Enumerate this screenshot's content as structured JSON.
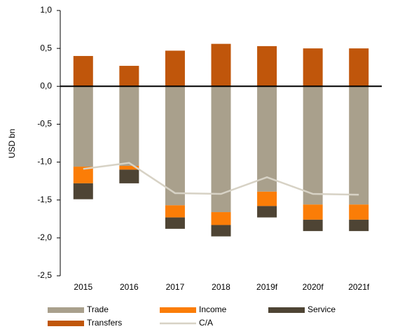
{
  "chart_data": {
    "type": "bar",
    "stacked": true,
    "y_label": "USD bn",
    "categories": [
      "2015",
      "2016",
      "2017",
      "2018",
      "2019f",
      "2020f",
      "2021f"
    ],
    "series": [
      {
        "name": "Trade",
        "type": "bar",
        "color": "#a9a08c",
        "values": [
          -1.06,
          -1.05,
          -1.57,
          -1.66,
          -1.39,
          -1.56,
          -1.56
        ]
      },
      {
        "name": "Income",
        "type": "bar",
        "color": "#fb7d07",
        "values": [
          -0.22,
          -0.05,
          -0.16,
          -0.17,
          -0.19,
          -0.2,
          -0.2
        ]
      },
      {
        "name": "Service",
        "type": "bar",
        "color": "#4e4434",
        "values": [
          -0.21,
          -0.18,
          -0.15,
          -0.15,
          -0.15,
          -0.15,
          -0.15
        ]
      },
      {
        "name": "Transfers",
        "type": "bar",
        "color": "#c0560b",
        "values": [
          0.4,
          0.27,
          0.47,
          0.56,
          0.53,
          0.5,
          0.5
        ]
      },
      {
        "name": "C/A",
        "type": "line",
        "color": "#d7d2c5",
        "values": [
          -1.09,
          -1.01,
          -1.41,
          -1.42,
          -1.2,
          -1.42,
          -1.43
        ]
      }
    ],
    "ylim": [
      -2.5,
      1.0
    ],
    "yticks": [
      {
        "value": -2.5,
        "label": "-2,5"
      },
      {
        "value": -2.0,
        "label": "-2,0"
      },
      {
        "value": -1.5,
        "label": "-1,5"
      },
      {
        "value": -1.0,
        "label": "-1,0"
      },
      {
        "value": -0.5,
        "label": "-0,5"
      },
      {
        "value": 0,
        "label": "0,0"
      },
      {
        "value": 0.5,
        "label": "0,5"
      },
      {
        "value": 1.0,
        "label": "1,0"
      }
    ]
  }
}
